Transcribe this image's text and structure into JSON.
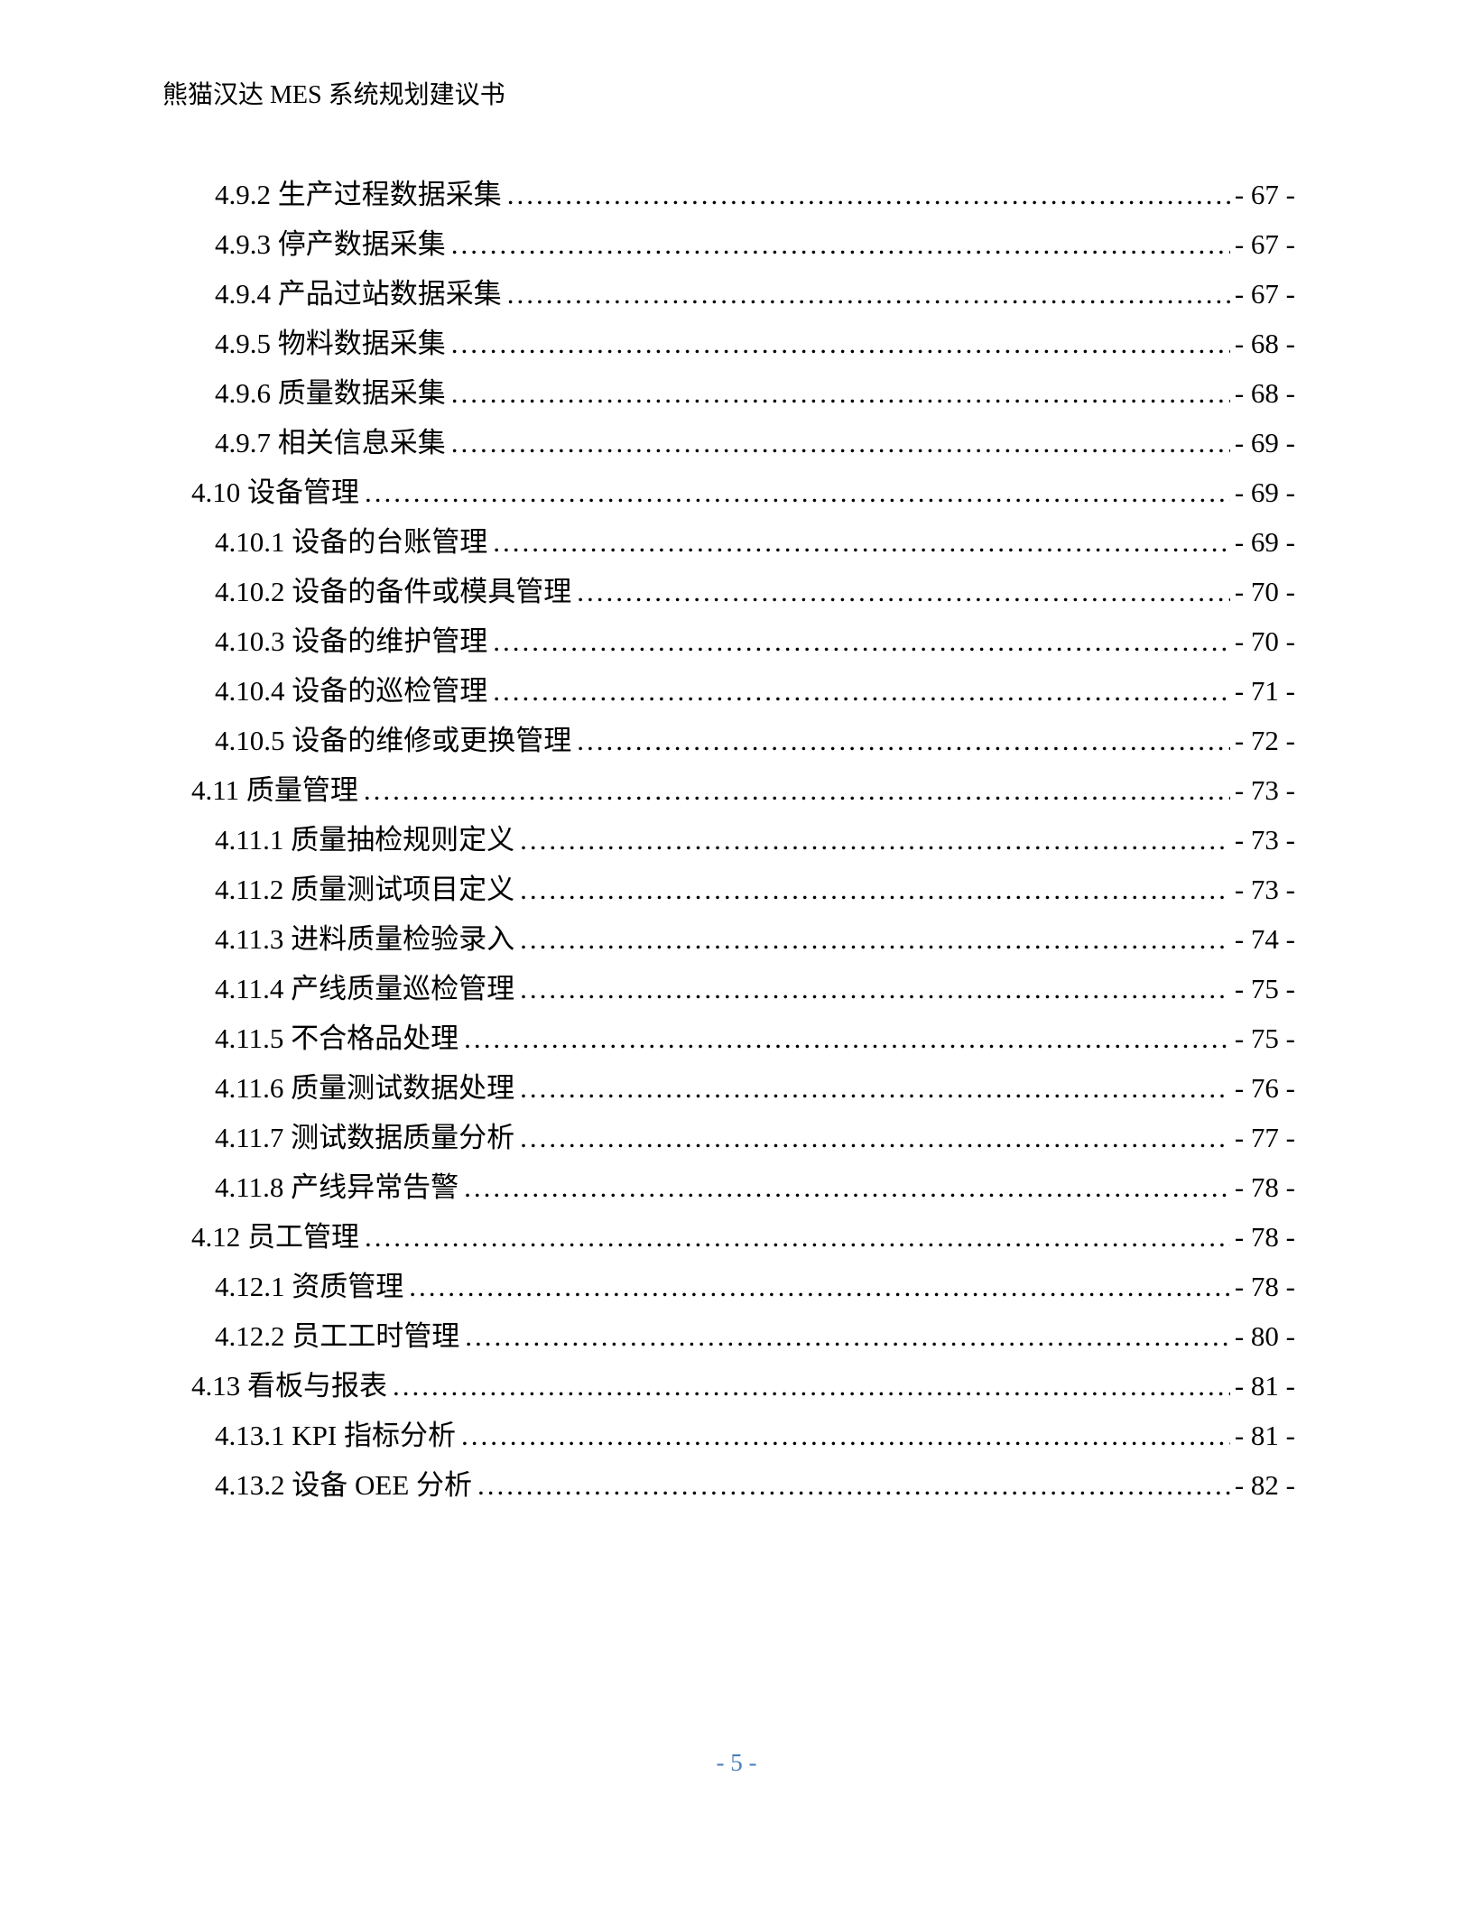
{
  "document": {
    "header_title": "熊猫汉达 MES 系统规划建议书"
  },
  "toc": {
    "entries": [
      {
        "label": "4.9.2 生产过程数据采集",
        "page": "- 67 -",
        "level": 3
      },
      {
        "label": "4.9.3 停产数据采集",
        "page": "- 67 -",
        "level": 3
      },
      {
        "label": "4.9.4 产品过站数据采集",
        "page": "- 67 -",
        "level": 3
      },
      {
        "label": "4.9.5 物料数据采集",
        "page": "- 68 -",
        "level": 3
      },
      {
        "label": "4.9.6 质量数据采集",
        "page": "- 68 -",
        "level": 3
      },
      {
        "label": "4.9.7 相关信息采集",
        "page": "- 69 -",
        "level": 3
      },
      {
        "label": "4.10 设备管理",
        "page": "- 69 -",
        "level": 2
      },
      {
        "label": "4.10.1 设备的台账管理",
        "page": "- 69 -",
        "level": 3
      },
      {
        "label": "4.10.2 设备的备件或模具管理",
        "page": "- 70 -",
        "level": 3
      },
      {
        "label": "4.10.3 设备的维护管理",
        "page": "- 70 -",
        "level": 3
      },
      {
        "label": "4.10.4 设备的巡检管理",
        "page": "- 71 -",
        "level": 3
      },
      {
        "label": "4.10.5 设备的维修或更换管理",
        "page": "- 72 -",
        "level": 3
      },
      {
        "label": "4.11 质量管理",
        "page": "- 73 -",
        "level": 2
      },
      {
        "label": "4.11.1 质量抽检规则定义",
        "page": "- 73 -",
        "level": 3
      },
      {
        "label": "4.11.2 质量测试项目定义",
        "page": "- 73 -",
        "level": 3
      },
      {
        "label": "4.11.3 进料质量检验录入",
        "page": "- 74 -",
        "level": 3
      },
      {
        "label": "4.11.4 产线质量巡检管理",
        "page": "- 75 -",
        "level": 3
      },
      {
        "label": "4.11.5 不合格品处理",
        "page": "- 75 -",
        "level": 3
      },
      {
        "label": "4.11.6 质量测试数据处理",
        "page": "- 76 -",
        "level": 3
      },
      {
        "label": "4.11.7 测试数据质量分析",
        "page": "- 77 -",
        "level": 3
      },
      {
        "label": "4.11.8 产线异常告警",
        "page": "- 78 -",
        "level": 3
      },
      {
        "label": "4.12 员工管理",
        "page": "- 78 -",
        "level": 2
      },
      {
        "label": "4.12.1 资质管理",
        "page": "- 78 -",
        "level": 3
      },
      {
        "label": "4.12.2 员工工时管理",
        "page": "- 80 -",
        "level": 3
      },
      {
        "label": "4.13 看板与报表",
        "page": "- 81 -",
        "level": 2
      },
      {
        "label": "4.13.1 KPI 指标分析",
        "page": "- 81 -",
        "level": 3
      },
      {
        "label": "4.13.2 设备 OEE 分析",
        "page": "- 82 -",
        "level": 3
      }
    ]
  },
  "footer": {
    "page_number": "- 5 -",
    "page_number_color": "#4a7ebb"
  }
}
